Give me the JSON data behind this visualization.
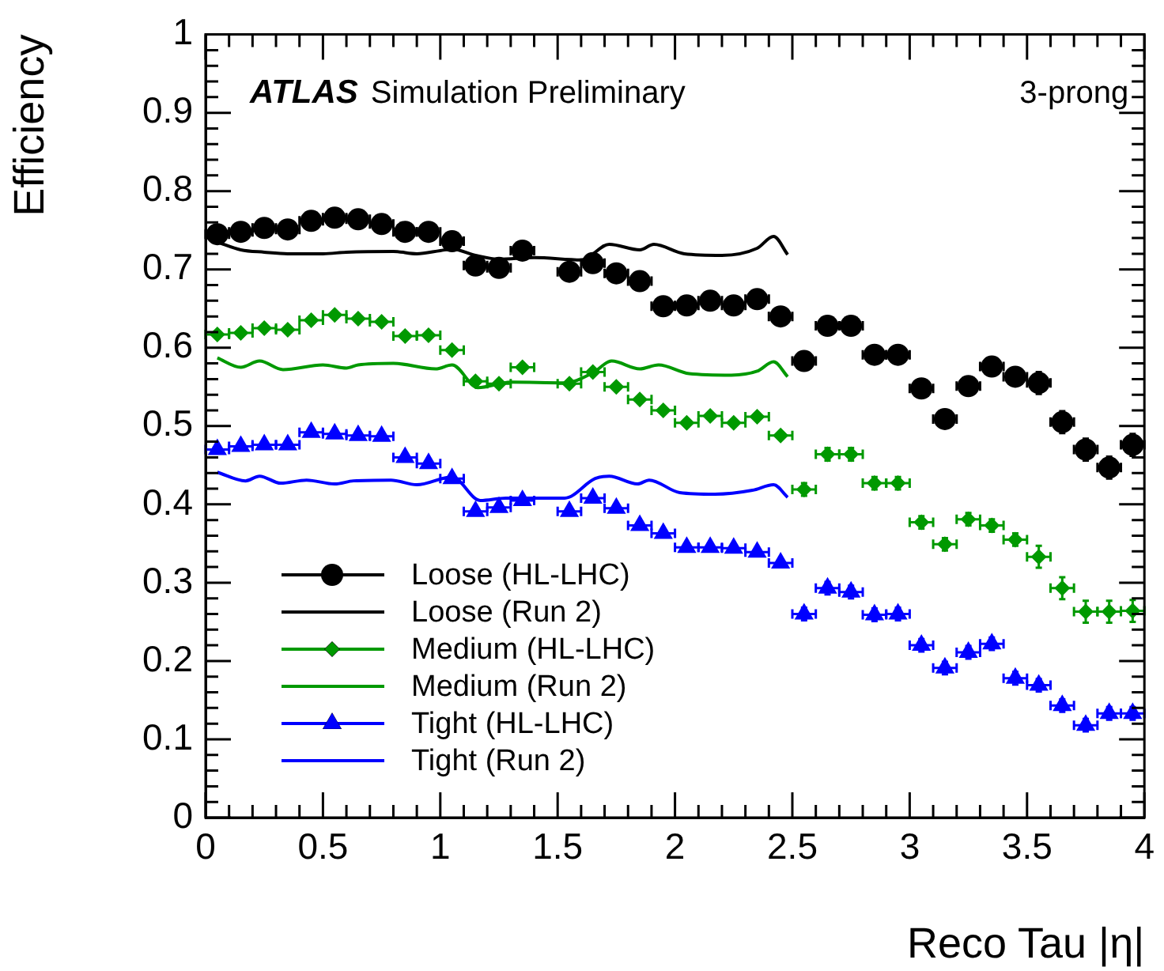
{
  "chart_data": {
    "type": "scatter",
    "xlabel": "Reco Tau |η|",
    "ylabel": "Efficiency",
    "annotations": [
      "ATLAS",
      "Simulation Preliminary",
      "3-prong"
    ],
    "x": [
      0.05,
      0.15,
      0.25,
      0.35,
      0.45,
      0.55,
      0.65,
      0.75,
      0.85,
      0.95,
      1.05,
      1.15,
      1.25,
      1.35,
      1.45,
      1.55,
      1.65,
      1.75,
      1.85,
      1.95,
      2.05,
      2.15,
      2.25,
      2.35,
      2.45,
      2.55,
      2.65,
      2.75,
      2.85,
      2.95,
      3.05,
      3.15,
      3.25,
      3.35,
      3.45,
      3.55,
      3.65,
      3.75,
      3.85,
      3.95
    ],
    "xlim": [
      0,
      4
    ],
    "xticks": [
      0,
      0.5,
      1,
      1.5,
      2,
      2.5,
      3,
      3.5,
      4
    ],
    "ylim": [
      0,
      1
    ],
    "yticks": [
      0,
      0.1,
      0.2,
      0.3,
      0.4,
      0.5,
      0.6,
      0.7,
      0.8,
      0.9,
      1
    ],
    "legend": "bottom left",
    "series": [
      {
        "name": "Loose (HL-LHC)",
        "type": "scatter",
        "marker": "circle",
        "color": "#000000",
        "values": [
          0.745,
          0.748,
          0.753,
          0.751,
          0.762,
          0.766,
          0.764,
          0.758,
          0.748,
          0.748,
          0.736,
          0.705,
          0.702,
          0.724,
          null,
          0.697,
          0.708,
          0.695,
          0.685,
          0.653,
          0.654,
          0.66,
          0.654,
          0.662,
          0.64,
          0.583,
          0.628,
          0.628,
          0.591,
          0.591,
          0.548,
          0.509,
          0.551,
          0.576,
          0.563,
          0.555,
          0.505,
          0.47,
          0.447,
          0.476
        ],
        "errors": [
          0.004,
          0.004,
          0.004,
          0.004,
          0.004,
          0.004,
          0.004,
          0.004,
          0.004,
          0.004,
          0.004,
          0.004,
          0.004,
          0.004,
          null,
          0.004,
          0.004,
          0.004,
          0.004,
          0.004,
          0.004,
          0.004,
          0.004,
          0.004,
          0.004,
          0.008,
          0.008,
          0.008,
          0.008,
          0.008,
          0.008,
          0.008,
          0.008,
          0.008,
          0.008,
          0.014,
          0.014,
          0.014,
          0.014,
          0.014
        ],
        "xerrors": [
          0.05,
          0.05,
          0.05,
          0.05,
          0.05,
          0.05,
          0.05,
          0.05,
          0.05,
          0.05,
          0.05,
          0.05,
          0.05,
          0.05,
          null,
          0.05,
          0.05,
          0.05,
          0.05,
          0.05,
          0.05,
          0.05,
          0.05,
          0.05,
          0.05,
          0.05,
          0.05,
          0.05,
          0.05,
          0.05,
          0.05,
          0.05,
          0.05,
          0.05,
          0.05,
          0.05,
          0.05,
          0.05,
          0.05,
          0.05
        ]
      },
      {
        "name": "Loose (Run 2)",
        "type": "line",
        "marker": "none",
        "color": "#000000",
        "x": [
          0.05,
          0.15,
          0.25,
          0.35,
          0.5,
          0.6,
          0.8,
          0.9,
          1.0,
          1.05,
          1.15,
          1.25,
          1.4,
          1.6,
          1.72,
          1.85,
          1.91,
          2.04,
          2.2,
          2.35,
          2.42,
          2.48
        ],
        "values": [
          0.735,
          0.725,
          0.722,
          0.72,
          0.72,
          0.722,
          0.723,
          0.72,
          0.724,
          0.726,
          0.718,
          0.713,
          0.715,
          0.712,
          0.732,
          0.725,
          0.732,
          0.72,
          0.718,
          0.727,
          0.742,
          0.719
        ]
      },
      {
        "name": "Medium (HL-LHC)",
        "type": "scatter",
        "marker": "diamond",
        "color": "#009900",
        "values": [
          0.617,
          0.619,
          0.625,
          0.623,
          0.635,
          0.642,
          0.637,
          0.633,
          0.615,
          0.616,
          0.597,
          0.557,
          0.554,
          0.575,
          null,
          0.554,
          0.569,
          0.55,
          0.534,
          0.52,
          0.504,
          0.513,
          0.504,
          0.512,
          0.488,
          0.419,
          0.464,
          0.464,
          0.427,
          0.427,
          0.377,
          0.349,
          0.381,
          0.373,
          0.355,
          0.333,
          0.293,
          0.263,
          0.263,
          0.264
        ],
        "errors": [
          0.004,
          0.004,
          0.004,
          0.004,
          0.004,
          0.004,
          0.004,
          0.004,
          0.004,
          0.004,
          0.004,
          0.004,
          0.004,
          0.004,
          null,
          0.004,
          0.004,
          0.004,
          0.004,
          0.004,
          0.004,
          0.004,
          0.004,
          0.004,
          0.004,
          0.008,
          0.008,
          0.008,
          0.008,
          0.008,
          0.008,
          0.008,
          0.008,
          0.008,
          0.008,
          0.014,
          0.014,
          0.014,
          0.014,
          0.014
        ],
        "xerrors": [
          0.05,
          0.05,
          0.05,
          0.05,
          0.05,
          0.05,
          0.05,
          0.05,
          0.05,
          0.05,
          0.05,
          0.05,
          0.05,
          0.05,
          null,
          0.05,
          0.05,
          0.05,
          0.05,
          0.05,
          0.05,
          0.05,
          0.05,
          0.05,
          0.05,
          0.05,
          0.05,
          0.05,
          0.05,
          0.05,
          0.05,
          0.05,
          0.05,
          0.05,
          0.05,
          0.05,
          0.05,
          0.05,
          0.05,
          0.05
        ]
      },
      {
        "name": "Medium (Run 2)",
        "type": "line",
        "marker": "none",
        "color": "#009900",
        "x": [
          0.05,
          0.15,
          0.23,
          0.33,
          0.5,
          0.6,
          0.65,
          0.8,
          0.98,
          1.05,
          1.16,
          1.3,
          1.53,
          1.65,
          1.73,
          1.85,
          1.93,
          2.06,
          2.24,
          2.35,
          2.42,
          2.48
        ],
        "values": [
          0.587,
          0.575,
          0.583,
          0.572,
          0.578,
          0.574,
          0.578,
          0.58,
          0.573,
          0.578,
          0.549,
          0.556,
          0.555,
          0.568,
          0.583,
          0.573,
          0.578,
          0.567,
          0.565,
          0.57,
          0.582,
          0.563
        ]
      },
      {
        "name": "Tight (HL-LHC)",
        "type": "scatter",
        "marker": "triangle",
        "color": "#0000ff",
        "values": [
          0.47,
          0.474,
          0.476,
          0.476,
          0.492,
          0.49,
          0.488,
          0.487,
          0.46,
          0.452,
          0.433,
          0.391,
          0.396,
          0.405,
          null,
          0.391,
          0.408,
          0.395,
          0.373,
          0.363,
          0.345,
          0.345,
          0.344,
          0.339,
          0.325,
          0.26,
          0.293,
          0.288,
          0.259,
          0.26,
          0.22,
          0.191,
          0.211,
          0.222,
          0.178,
          0.169,
          0.143,
          0.118,
          0.133,
          0.133
        ],
        "errors": [
          0.004,
          0.004,
          0.004,
          0.004,
          0.004,
          0.004,
          0.004,
          0.004,
          0.004,
          0.004,
          0.004,
          0.004,
          0.004,
          0.004,
          null,
          0.004,
          0.004,
          0.004,
          0.004,
          0.004,
          0.004,
          0.004,
          0.004,
          0.004,
          0.004,
          0.008,
          0.008,
          0.008,
          0.008,
          0.008,
          0.008,
          0.008,
          0.008,
          0.008,
          0.008,
          0.008,
          0.008,
          0.008,
          0.008,
          0.008
        ],
        "xerrors": [
          0.05,
          0.05,
          0.05,
          0.05,
          0.05,
          0.05,
          0.05,
          0.05,
          0.05,
          0.05,
          0.05,
          0.05,
          0.05,
          0.05,
          null,
          0.05,
          0.05,
          0.05,
          0.05,
          0.05,
          0.05,
          0.05,
          0.05,
          0.05,
          0.05,
          0.05,
          0.05,
          0.05,
          0.05,
          0.05,
          0.05,
          0.05,
          0.05,
          0.05,
          0.05,
          0.05,
          0.05,
          0.05,
          0.05,
          0.05
        ]
      },
      {
        "name": "Tight (Run 2)",
        "type": "line",
        "marker": "none",
        "color": "#0000ff",
        "x": [
          0.05,
          0.17,
          0.23,
          0.32,
          0.43,
          0.55,
          0.63,
          0.79,
          0.9,
          1.05,
          1.17,
          1.28,
          1.35,
          1.53,
          1.66,
          1.72,
          1.84,
          1.89,
          2.02,
          2.17,
          2.33,
          2.42,
          2.48
        ],
        "values": [
          0.441,
          0.43,
          0.436,
          0.427,
          0.431,
          0.426,
          0.43,
          0.431,
          0.425,
          0.435,
          0.405,
          0.408,
          0.408,
          0.408,
          0.433,
          0.436,
          0.426,
          0.431,
          0.415,
          0.413,
          0.418,
          0.425,
          0.409
        ]
      }
    ]
  }
}
